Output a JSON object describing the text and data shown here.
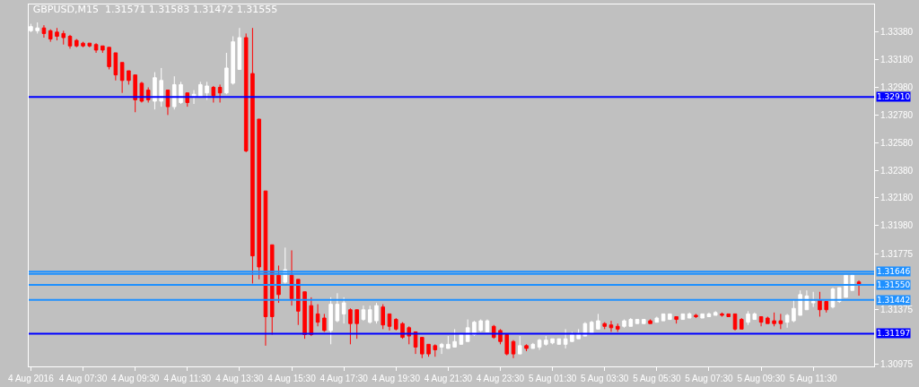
{
  "chart_data": {
    "type": "candlestick",
    "title": "GBPUSD,M15  1.31571 1.31583 1.31472 1.31555",
    "series": [
      {
        "color": "#ffffff",
        "x": [
          "2016-08-04T05:30",
          "2016-08-04T05:45",
          "2016-08-04T10:15",
          "2016-08-04T10:30",
          "2016-08-04T11:00",
          "2016-08-04T11:15",
          "2016-08-04T11:45",
          "2016-08-04T12:00",
          "2016-08-04T12:15",
          "2016-08-04T13:00",
          "2016-08-04T13:15",
          "2016-08-04T13:30",
          "2016-08-04T15:15",
          "2016-08-04T17:00",
          "2016-08-04T17:15",
          "2016-08-04T17:30",
          "2016-08-04T18:15",
          "2016-08-04T18:30",
          "2016-08-04T18:45",
          "2016-08-04T21:15",
          "2016-08-04T21:30",
          "2016-08-04T21:45",
          "2016-08-04T22:00",
          "2016-08-04T22:15",
          "2016-08-04T22:30",
          "2016-08-04T22:45",
          "2016-08-04T23:00",
          "2016-08-05T00:15",
          "2016-08-05T00:45",
          "2016-08-05T01:00",
          "2016-08-05T01:15",
          "2016-08-05T01:30",
          "2016-08-05T01:45",
          "2016-08-05T02:00",
          "2016-08-05T02:15",
          "2016-08-05T02:30",
          "2016-08-05T02:45",
          "2016-08-05T03:00",
          "2016-08-05T03:15",
          "2016-08-05T04:15",
          "2016-08-05T04:30",
          "2016-08-05T04:45",
          "2016-08-05T05:00",
          "2016-08-05T05:30",
          "2016-08-05T05:45",
          "2016-08-05T06:00",
          "2016-08-05T06:30",
          "2016-08-05T06:45",
          "2016-08-05T07:15",
          "2016-08-05T07:30",
          "2016-08-05T07:45",
          "2016-08-05T09:00",
          "2016-08-05T09:15",
          "2016-08-05T10:30",
          "2016-08-05T10:45",
          "2016-08-05T11:00",
          "2016-08-05T11:15",
          "2016-08-05T11:30",
          "2016-08-05T12:15",
          "2016-08-05T12:30",
          "2016-08-05T12:45",
          "2016-08-05T13:00"
        ],
        "ohlc": [
          [
            1.3339,
            1.3344,
            1.3338,
            1.3342
          ],
          [
            1.3339,
            1.3345,
            1.3337,
            1.3341
          ],
          [
            1.3288,
            1.3309,
            1.3282,
            1.3305
          ],
          [
            1.3288,
            1.3312,
            1.3284,
            1.3303
          ],
          [
            1.3284,
            1.3306,
            1.3282,
            1.33
          ],
          [
            1.3287,
            1.3302,
            1.3286,
            1.33
          ],
          [
            1.3291,
            1.3296,
            1.3286,
            1.3293
          ],
          [
            1.3291,
            1.3302,
            1.3291,
            1.33
          ],
          [
            1.3294,
            1.3302,
            1.3289,
            1.3299
          ],
          [
            1.3294,
            1.3323,
            1.3293,
            1.3312
          ],
          [
            1.3301,
            1.3335,
            1.33,
            1.3331
          ],
          [
            1.3311,
            1.3341,
            1.3311,
            1.3334
          ],
          [
            1.3157,
            1.3182,
            1.3156,
            1.3166
          ],
          [
            1.3122,
            1.3146,
            1.3112,
            1.3141
          ],
          [
            1.3129,
            1.3149,
            1.3128,
            1.3141
          ],
          [
            1.3134,
            1.3146,
            1.3127,
            1.3142
          ],
          [
            1.313,
            1.314,
            1.3129,
            1.3137
          ],
          [
            1.3128,
            1.314,
            1.3127,
            1.3137
          ],
          [
            1.3129,
            1.3142,
            1.3127,
            1.314
          ],
          [
            1.311,
            1.3113,
            1.3105,
            1.3112
          ],
          [
            1.3109,
            1.3118,
            1.3109,
            1.3112
          ],
          [
            1.311,
            1.3123,
            1.311,
            1.3114
          ],
          [
            1.3112,
            1.3119,
            1.3112,
            1.3119
          ],
          [
            1.3114,
            1.313,
            1.3114,
            1.3124
          ],
          [
            1.3119,
            1.3129,
            1.3118,
            1.3128
          ],
          [
            1.3122,
            1.313,
            1.3121,
            1.3129
          ],
          [
            1.3121,
            1.313,
            1.3121,
            1.3129
          ],
          [
            1.3105,
            1.3118,
            1.3105,
            1.3111
          ],
          [
            1.3109,
            1.3113,
            1.3109,
            1.3112
          ],
          [
            1.311,
            1.3116,
            1.3108,
            1.3115
          ],
          [
            1.3112,
            1.3118,
            1.3111,
            1.3115
          ],
          [
            1.3113,
            1.3116,
            1.3112,
            1.3116
          ],
          [
            1.3112,
            1.3116,
            1.3112,
            1.3116
          ],
          [
            1.3112,
            1.3123,
            1.3109,
            1.3116
          ],
          [
            1.3114,
            1.3121,
            1.3114,
            1.3119
          ],
          [
            1.3116,
            1.3123,
            1.3116,
            1.312
          ],
          [
            1.3118,
            1.3128,
            1.3118,
            1.3127
          ],
          [
            1.312,
            1.3129,
            1.312,
            1.3128
          ],
          [
            1.3123,
            1.3134,
            1.3123,
            1.3129
          ],
          [
            1.3125,
            1.313,
            1.3124,
            1.3129
          ],
          [
            1.3125,
            1.3131,
            1.3125,
            1.313
          ],
          [
            1.3127,
            1.313,
            1.3127,
            1.313
          ],
          [
            1.3127,
            1.313,
            1.3127,
            1.313
          ],
          [
            1.3128,
            1.3132,
            1.3128,
            1.3131
          ],
          [
            1.3129,
            1.3134,
            1.3129,
            1.3134
          ],
          [
            1.313,
            1.3134,
            1.313,
            1.3134
          ],
          [
            1.313,
            1.3134,
            1.313,
            1.3134
          ],
          [
            1.3131,
            1.3135,
            1.3131,
            1.3134
          ],
          [
            1.3131,
            1.3134,
            1.3131,
            1.3134
          ],
          [
            1.3132,
            1.3135,
            1.3132,
            1.3134
          ],
          [
            1.3133,
            1.3136,
            1.3133,
            1.3135
          ],
          [
            1.3128,
            1.3136,
            1.3126,
            1.3134
          ],
          [
            1.313,
            1.3135,
            1.313,
            1.3134
          ],
          [
            1.3128,
            1.3134,
            1.3124,
            1.3133
          ],
          [
            1.3129,
            1.3144,
            1.3128,
            1.3138
          ],
          [
            1.3133,
            1.3151,
            1.3133,
            1.3148
          ],
          [
            1.3137,
            1.3151,
            1.3137,
            1.3147
          ],
          [
            1.3142,
            1.315,
            1.3139,
            1.3143
          ],
          [
            1.3139,
            1.3153,
            1.3138,
            1.3152
          ],
          [
            1.3143,
            1.3153,
            1.3142,
            1.3153
          ],
          [
            1.3146,
            1.3162,
            1.3146,
            1.3162
          ],
          [
            1.3151,
            1.3163,
            1.3151,
            1.3162
          ]
        ]
      },
      {
        "color": "#ff0000",
        "x": [
          "2016-08-04T06:00",
          "2016-08-04T06:15",
          "2016-08-04T06:30",
          "2016-08-04T06:45",
          "2016-08-04T07:00",
          "2016-08-04T07:15",
          "2016-08-04T07:30",
          "2016-08-04T07:45",
          "2016-08-04T08:00",
          "2016-08-04T08:15",
          "2016-08-04T08:30",
          "2016-08-04T08:45",
          "2016-08-04T09:00",
          "2016-08-04T09:15",
          "2016-08-04T09:30",
          "2016-08-04T09:45",
          "2016-08-04T10:00",
          "2016-08-04T10:45",
          "2016-08-04T11:30",
          "2016-08-04T12:30",
          "2016-08-04T12:45",
          "2016-08-04T13:45",
          "2016-08-04T14:00",
          "2016-08-04T14:15",
          "2016-08-04T14:30",
          "2016-08-04T14:45",
          "2016-08-04T15:00",
          "2016-08-04T15:30",
          "2016-08-04T15:45",
          "2016-08-04T16:00",
          "2016-08-04T16:15",
          "2016-08-04T16:30",
          "2016-08-04T16:45",
          "2016-08-04T17:45",
          "2016-08-04T18:00",
          "2016-08-04T19:00",
          "2016-08-04T19:15",
          "2016-08-04T19:30",
          "2016-08-04T19:45",
          "2016-08-04T20:00",
          "2016-08-04T20:15",
          "2016-08-04T20:30",
          "2016-08-04T20:45",
          "2016-08-04T21:00",
          "2016-08-04T23:15",
          "2016-08-04T23:30",
          "2016-08-04T23:45",
          "2016-08-05T00:00",
          "2016-08-05T00:30",
          "2016-08-05T03:30",
          "2016-08-05T03:45",
          "2016-08-05T04:00",
          "2016-08-05T05:15",
          "2016-08-05T06:15",
          "2016-08-05T07:00",
          "2016-08-05T08:00",
          "2016-08-05T08:15",
          "2016-08-05T08:30",
          "2016-08-05T08:45",
          "2016-08-05T09:30",
          "2016-08-05T09:45",
          "2016-08-05T10:00",
          "2016-08-05T10:15",
          "2016-08-05T11:45",
          "2016-08-05T12:00",
          "2016-08-05T13:15"
        ],
        "ohlc": [
          [
            1.3341,
            1.3343,
            1.3334,
            1.3337
          ],
          [
            1.3339,
            1.334,
            1.3331,
            1.3333
          ],
          [
            1.3338,
            1.3341,
            1.3332,
            1.3335
          ],
          [
            1.3337,
            1.3339,
            1.3329,
            1.3334
          ],
          [
            1.3335,
            1.3336,
            1.3326,
            1.3328
          ],
          [
            1.3332,
            1.3333,
            1.3327,
            1.3328
          ],
          [
            1.333,
            1.3331,
            1.3327,
            1.3328
          ],
          [
            1.333,
            1.333,
            1.3327,
            1.3328
          ],
          [
            1.3329,
            1.333,
            1.3323,
            1.3325
          ],
          [
            1.3328,
            1.3328,
            1.3323,
            1.3325
          ],
          [
            1.3327,
            1.3327,
            1.3311,
            1.3313
          ],
          [
            1.3323,
            1.3323,
            1.3303,
            1.3307
          ],
          [
            1.3316,
            1.3316,
            1.3294,
            1.3303
          ],
          [
            1.331,
            1.331,
            1.33,
            1.3303
          ],
          [
            1.3307,
            1.3307,
            1.328,
            1.3289
          ],
          [
            1.3301,
            1.3302,
            1.3287,
            1.3288
          ],
          [
            1.3296,
            1.3298,
            1.3287,
            1.3289
          ],
          [
            1.3296,
            1.3296,
            1.3278,
            1.3284
          ],
          [
            1.3294,
            1.3294,
            1.3284,
            1.3287
          ],
          [
            1.3298,
            1.3299,
            1.3287,
            1.3292
          ],
          [
            1.3298,
            1.33,
            1.3287,
            1.3294
          ],
          [
            1.3334,
            1.3337,
            1.3251,
            1.3252
          ],
          [
            1.3308,
            1.3341,
            1.3156,
            1.3176
          ],
          [
            1.3275,
            1.3275,
            1.3159,
            1.3168
          ],
          [
            1.3223,
            1.3223,
            1.3111,
            1.3132
          ],
          [
            1.3184,
            1.3184,
            1.3119,
            1.3132
          ],
          [
            1.3162,
            1.3169,
            1.3142,
            1.3148
          ],
          [
            1.3162,
            1.318,
            1.314,
            1.3145
          ],
          [
            1.3159,
            1.3159,
            1.3126,
            1.3136
          ],
          [
            1.315,
            1.315,
            1.3116,
            1.3119
          ],
          [
            1.314,
            1.3146,
            1.3118,
            1.3119
          ],
          [
            1.3134,
            1.3141,
            1.3125,
            1.3128
          ],
          [
            1.3131,
            1.3134,
            1.3121,
            1.3122
          ],
          [
            1.3137,
            1.3138,
            1.3112,
            1.3127
          ],
          [
            1.3137,
            1.3137,
            1.3116,
            1.3127
          ],
          [
            1.3139,
            1.3141,
            1.3123,
            1.3126
          ],
          [
            1.3134,
            1.3134,
            1.3122,
            1.3125
          ],
          [
            1.313,
            1.3131,
            1.3122,
            1.3123
          ],
          [
            1.3127,
            1.3128,
            1.3116,
            1.3117
          ],
          [
            1.3124,
            1.3125,
            1.3112,
            1.3118
          ],
          [
            1.3121,
            1.3121,
            1.3105,
            1.311
          ],
          [
            1.3117,
            1.3117,
            1.3102,
            1.3105
          ],
          [
            1.3112,
            1.3112,
            1.3103,
            1.3105
          ],
          [
            1.3111,
            1.3112,
            1.3103,
            1.3108
          ],
          [
            1.3125,
            1.3126,
            1.3116,
            1.3117
          ],
          [
            1.3122,
            1.3123,
            1.3112,
            1.3114
          ],
          [
            1.3119,
            1.3119,
            1.3104,
            1.3105
          ],
          [
            1.3114,
            1.3115,
            1.3102,
            1.3105
          ],
          [
            1.3111,
            1.3112,
            1.3107,
            1.3109
          ],
          [
            1.3127,
            1.3128,
            1.3123,
            1.3125
          ],
          [
            1.3126,
            1.3129,
            1.3121,
            1.3124
          ],
          [
            1.3125,
            1.3127,
            1.3121,
            1.3123
          ],
          [
            1.3129,
            1.313,
            1.3127,
            1.3127
          ],
          [
            1.3132,
            1.3132,
            1.3127,
            1.313
          ],
          [
            1.3133,
            1.3134,
            1.3131,
            1.3132
          ],
          [
            1.3134,
            1.3135,
            1.3132,
            1.3133
          ],
          [
            1.3134,
            1.3134,
            1.3132,
            1.3132
          ],
          [
            1.3134,
            1.3134,
            1.3122,
            1.3123
          ],
          [
            1.313,
            1.3131,
            1.3123,
            1.3123
          ],
          [
            1.3132,
            1.3132,
            1.3125,
            1.3128
          ],
          [
            1.3131,
            1.3132,
            1.3127,
            1.3127
          ],
          [
            1.3129,
            1.3135,
            1.3125,
            1.3127
          ],
          [
            1.3129,
            1.3134,
            1.3123,
            1.3127
          ],
          [
            1.3144,
            1.315,
            1.3132,
            1.3137
          ],
          [
            1.3143,
            1.3143,
            1.3135,
            1.3137
          ],
          [
            1.31571,
            1.31583,
            1.31472,
            1.31555
          ]
        ]
      }
    ],
    "xlim": [
      "2016-08-04T05:25",
      "2016-08-05T13:50"
    ],
    "xticks": [
      {
        "value": "2016-08-04T05:30",
        "label": "4 Aug 2016"
      },
      {
        "value": "2016-08-04T07:30",
        "label": "4 Aug 07:30"
      },
      {
        "value": "2016-08-04T09:30",
        "label": "4 Aug 09:30"
      },
      {
        "value": "2016-08-04T11:30",
        "label": "4 Aug 11:30"
      },
      {
        "value": "2016-08-04T13:30",
        "label": "4 Aug 13:30"
      },
      {
        "value": "2016-08-04T15:30",
        "label": "4 Aug 15:30"
      },
      {
        "value": "2016-08-04T17:30",
        "label": "4 Aug 17:30"
      },
      {
        "value": "2016-08-04T19:30",
        "label": "4 Aug 19:30"
      },
      {
        "value": "2016-08-04T21:30",
        "label": "4 Aug 21:30"
      },
      {
        "value": "2016-08-04T23:30",
        "label": "4 Aug 23:30"
      },
      {
        "value": "2016-08-05T01:30",
        "label": "5 Aug 01:30"
      },
      {
        "value": "2016-08-05T03:30",
        "label": "5 Aug 03:30"
      },
      {
        "value": "2016-08-05T05:30",
        "label": "5 Aug 05:30"
      },
      {
        "value": "2016-08-05T07:30",
        "label": "5 Aug 07:30"
      },
      {
        "value": "2016-08-05T09:30",
        "label": "5 Aug 09:30"
      },
      {
        "value": "2016-08-05T11:30",
        "label": "5 Aug 11:30"
      }
    ],
    "ylim": [
      1.3096,
      1.3358
    ],
    "yticks": [
      {
        "value": 1.3338,
        "label": "1.33380"
      },
      {
        "value": 1.3318,
        "label": "1.33180"
      },
      {
        "value": 1.3298,
        "label": "1.32980"
      },
      {
        "value": 1.3278,
        "label": "1.32780"
      },
      {
        "value": 1.3258,
        "label": "1.32580"
      },
      {
        "value": 1.3238,
        "label": "1.32380"
      },
      {
        "value": 1.3218,
        "label": "1.32180"
      },
      {
        "value": 1.3198,
        "label": "1.31980"
      },
      {
        "value": 1.31775,
        "label": "1.31775"
      },
      {
        "value": 1.31375,
        "label": "1.31375"
      },
      {
        "value": 1.30975,
        "label": "1.30975"
      }
    ],
    "ref_lines": [
      {
        "axis": "y",
        "value": 1.3291,
        "label": "1.32910",
        "color": "#0000ff"
      },
      {
        "axis": "y",
        "value": 1.31646,
        "label": "1.31646",
        "color": "#1e90ff"
      },
      {
        "axis": "y",
        "value": 1.3163,
        "label": null,
        "color": "#1e90ff"
      },
      {
        "axis": "y",
        "value": 1.3155,
        "label": "1.31550",
        "color": "#1e90ff"
      },
      {
        "axis": "y",
        "value": 1.31442,
        "label": "1.31442",
        "color": "#1e90ff"
      },
      {
        "axis": "y",
        "value": 1.31197,
        "label": "1.31197",
        "color": "#0000ff"
      }
    ],
    "grid": false
  }
}
